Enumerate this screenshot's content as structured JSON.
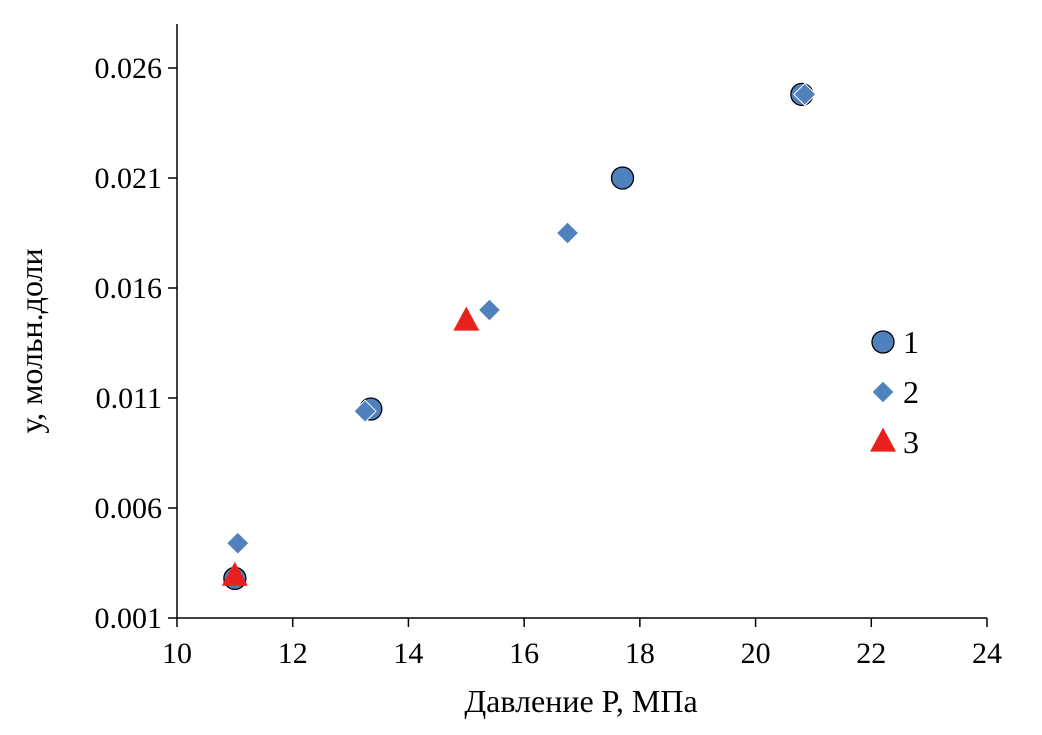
{
  "chart_data": {
    "type": "scatter",
    "xlabel": "Давление P, МПа",
    "ylabel": "у, мольн.доли",
    "xlim": [
      10,
      24
    ],
    "ylim": [
      0.001,
      0.028
    ],
    "x_ticks": [
      "10",
      "12",
      "14",
      "16",
      "18",
      "20",
      "22",
      "24"
    ],
    "x_tick_values": [
      10,
      12,
      14,
      16,
      18,
      20,
      22,
      24
    ],
    "y_ticks": [
      "0.001",
      "0.006",
      "0.011",
      "0.016",
      "0.021",
      "0.026"
    ],
    "y_tick_values": [
      0.001,
      0.006,
      0.011,
      0.016,
      0.021,
      0.026
    ],
    "grid": false,
    "legend_position": "right",
    "series": [
      {
        "name": "1",
        "marker": "circle",
        "color": "#4F81BD",
        "stroke": "#000000",
        "points": [
          [
            11.0,
            0.0028
          ],
          [
            13.35,
            0.0105
          ],
          [
            17.7,
            0.021
          ],
          [
            20.8,
            0.0248
          ]
        ]
      },
      {
        "name": "2",
        "marker": "diamond",
        "color": "#4F81BD",
        "stroke": "#ffffff",
        "points": [
          [
            11.05,
            0.0044
          ],
          [
            13.25,
            0.0104
          ],
          [
            15.4,
            0.015
          ],
          [
            16.75,
            0.0185
          ],
          [
            20.85,
            0.0248
          ]
        ]
      },
      {
        "name": "3",
        "marker": "triangle",
        "color": "#E8201E",
        "stroke": "none",
        "points": [
          [
            11.0,
            0.0029
          ],
          [
            15.0,
            0.0145
          ]
        ]
      }
    ]
  }
}
